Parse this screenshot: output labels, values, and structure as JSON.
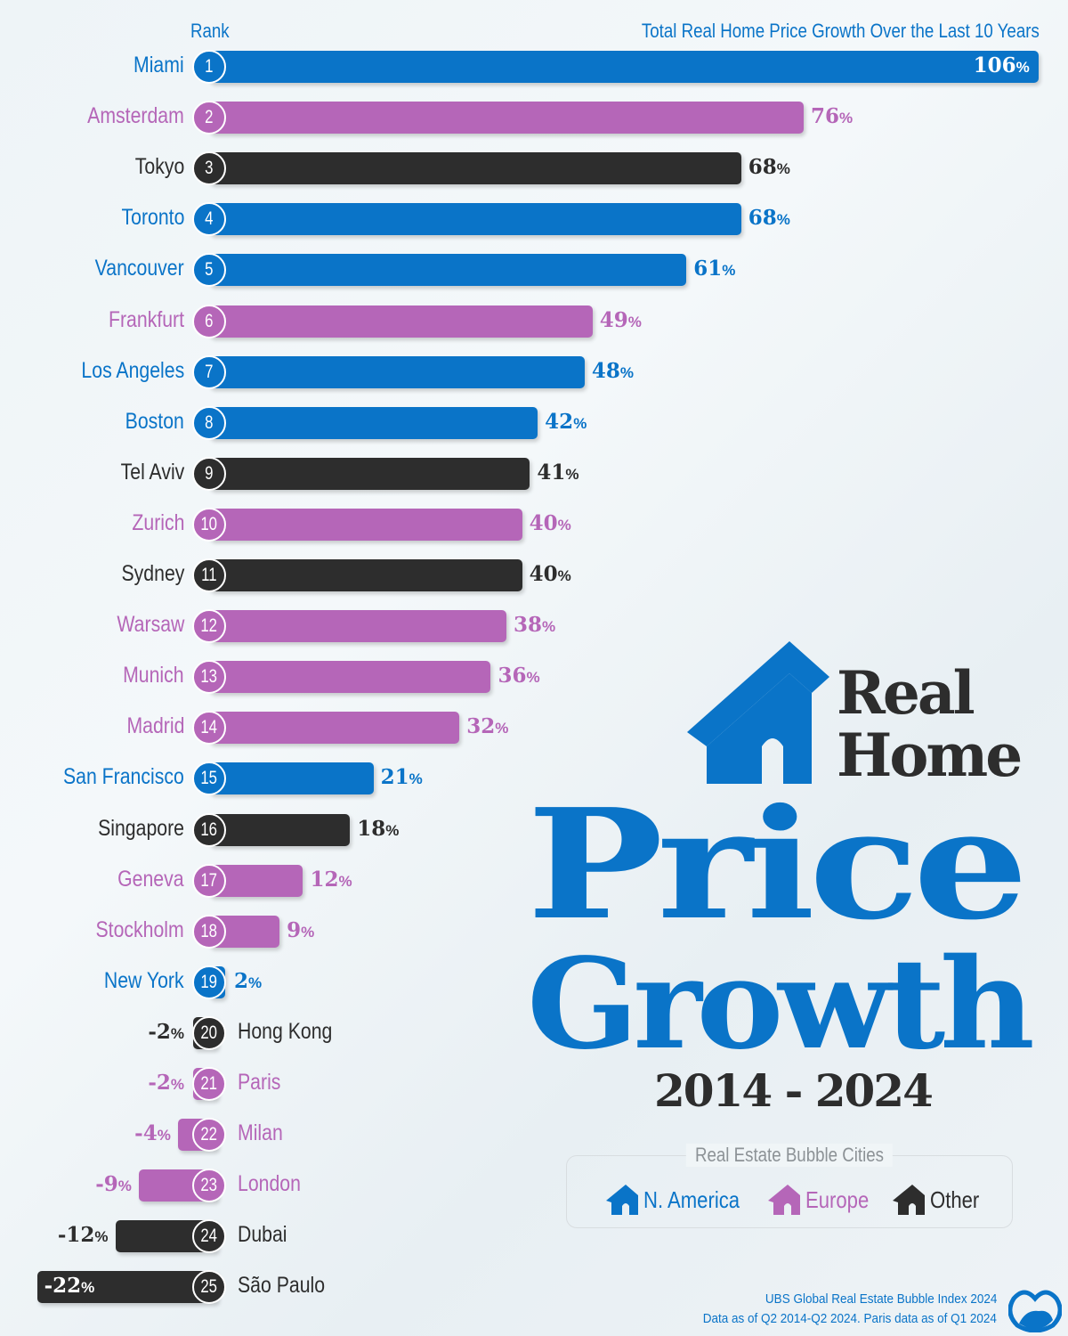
{
  "chart_data": {
    "type": "bar",
    "orientation": "horizontal",
    "title": "Real Home Price Growth",
    "subtitle": "2014 - 2024",
    "rank_header": "Rank",
    "value_header": "Total Real Home Price Growth Over the Last 10 Years",
    "unit": "%",
    "xlim": [
      -22,
      106
    ],
    "colors": {
      "N. America": "#0a74c8",
      "Europe": "#b566b8",
      "Other": "#2d2d2d"
    },
    "rows": [
      {
        "rank": 1,
        "city": "Miami",
        "value": 106,
        "region": "N. America"
      },
      {
        "rank": 2,
        "city": "Amsterdam",
        "value": 76,
        "region": "Europe"
      },
      {
        "rank": 3,
        "city": "Tokyo",
        "value": 68,
        "region": "Other"
      },
      {
        "rank": 4,
        "city": "Toronto",
        "value": 68,
        "region": "N. America"
      },
      {
        "rank": 5,
        "city": "Vancouver",
        "value": 61,
        "region": "N. America"
      },
      {
        "rank": 6,
        "city": "Frankfurt",
        "value": 49,
        "region": "Europe"
      },
      {
        "rank": 7,
        "city": "Los Angeles",
        "value": 48,
        "region": "N. America"
      },
      {
        "rank": 8,
        "city": "Boston",
        "value": 42,
        "region": "N. America"
      },
      {
        "rank": 9,
        "city": "Tel Aviv",
        "value": 41,
        "region": "Other"
      },
      {
        "rank": 10,
        "city": "Zurich",
        "value": 40,
        "region": "Europe"
      },
      {
        "rank": 11,
        "city": "Sydney",
        "value": 40,
        "region": "Other"
      },
      {
        "rank": 12,
        "city": "Warsaw",
        "value": 38,
        "region": "Europe"
      },
      {
        "rank": 13,
        "city": "Munich",
        "value": 36,
        "region": "Europe"
      },
      {
        "rank": 14,
        "city": "Madrid",
        "value": 32,
        "region": "Europe"
      },
      {
        "rank": 15,
        "city": "San Francisco",
        "value": 21,
        "region": "N. America"
      },
      {
        "rank": 16,
        "city": "Singapore",
        "value": 18,
        "region": "Other"
      },
      {
        "rank": 17,
        "city": "Geneva",
        "value": 12,
        "region": "Europe"
      },
      {
        "rank": 18,
        "city": "Stockholm",
        "value": 9,
        "region": "Europe"
      },
      {
        "rank": 19,
        "city": "New York",
        "value": 2,
        "region": "N. America"
      },
      {
        "rank": 20,
        "city": "Hong Kong",
        "value": -2,
        "region": "Other"
      },
      {
        "rank": 21,
        "city": "Paris",
        "value": -2,
        "region": "Europe"
      },
      {
        "rank": 22,
        "city": "Milan",
        "value": -4,
        "region": "Europe"
      },
      {
        "rank": 23,
        "city": "London",
        "value": -9,
        "region": "Europe"
      },
      {
        "rank": 24,
        "city": "Dubai",
        "value": -12,
        "region": "Other"
      },
      {
        "rank": 25,
        "city": "São Paulo",
        "value": -22,
        "region": "Other"
      }
    ]
  },
  "title": {
    "line1": "Real",
    "line2": "Home",
    "line3": "Price",
    "line4": "Growth",
    "years": "2014 - 2024"
  },
  "legend": {
    "title": "Real Estate Bubble Cities",
    "items": [
      {
        "label": "N. America",
        "color": "#0a74c8",
        "icon": "house-icon"
      },
      {
        "label": "Europe",
        "color": "#b566b8",
        "icon": "house-icon"
      },
      {
        "label": "Other",
        "color": "#2d2d2d",
        "icon": "house-icon"
      }
    ]
  },
  "source": {
    "line1": "UBS Global Real Estate Bubble Index 2024",
    "line2": "Data as of Q2 2014-Q2 2024. Paris data as of Q1 2024"
  }
}
